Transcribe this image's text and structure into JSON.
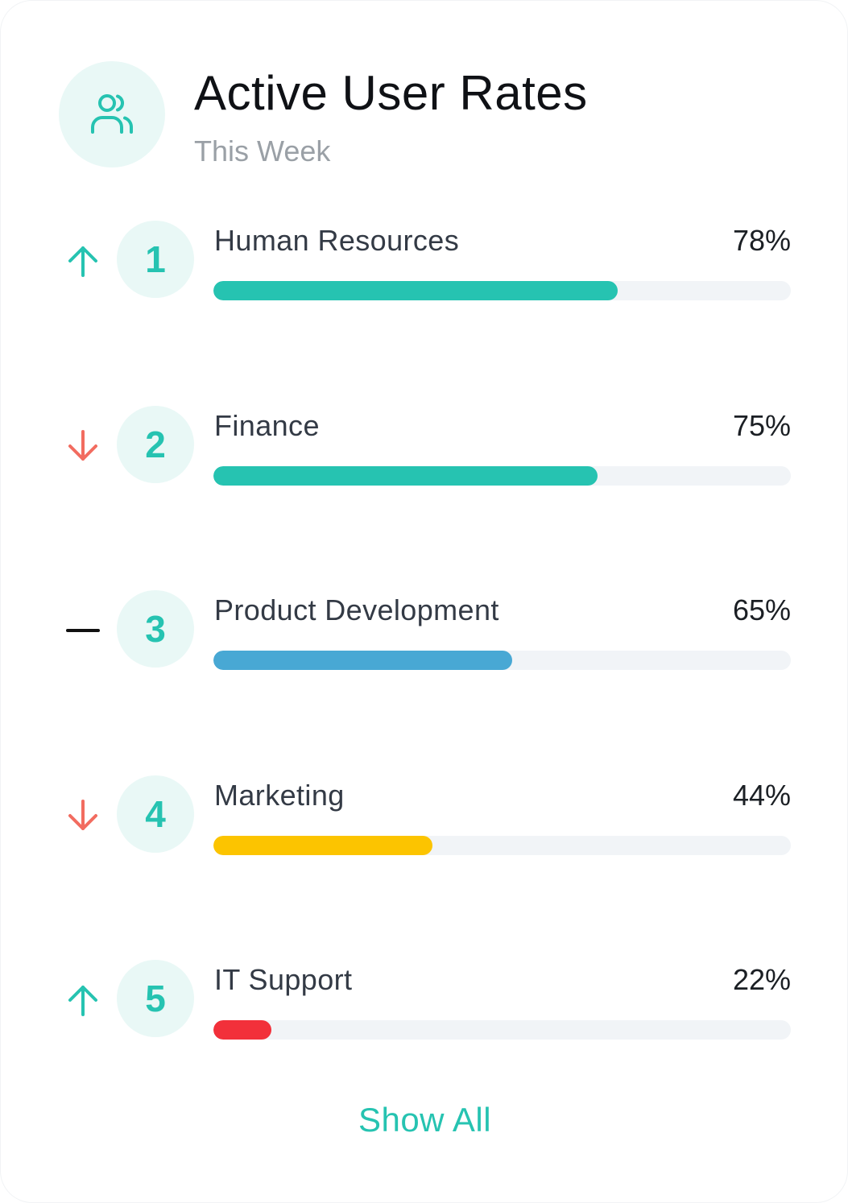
{
  "header": {
    "icon": "users-icon",
    "title": "Active User Rates",
    "subtitle": "This Week"
  },
  "colors": {
    "accent": "#26c3b1",
    "up": "#26c3b1",
    "down": "#f26c60",
    "flat": "#111111",
    "track": "#f1f4f7"
  },
  "items": [
    {
      "rank": "1",
      "trend": "up",
      "label": "Human Resources",
      "percent_text": "78%",
      "fill_fraction": 0.7,
      "color": "#26c3b1"
    },
    {
      "rank": "2",
      "trend": "down",
      "label": "Finance",
      "percent_text": "75%",
      "fill_fraction": 0.665,
      "color": "#26c3b1"
    },
    {
      "rank": "3",
      "trend": "flat",
      "label": "Product Development",
      "percent_text": "65%",
      "fill_fraction": 0.517,
      "color": "#48a8d4"
    },
    {
      "rank": "4",
      "trend": "down",
      "label": "Marketing",
      "percent_text": "44%",
      "fill_fraction": 0.379,
      "color": "#fcc400"
    },
    {
      "rank": "5",
      "trend": "up",
      "label": "IT Support",
      "percent_text": "22%",
      "fill_fraction": 0.1,
      "color": "#f2303a"
    }
  ],
  "footer": {
    "show_all_label": "Show All"
  }
}
